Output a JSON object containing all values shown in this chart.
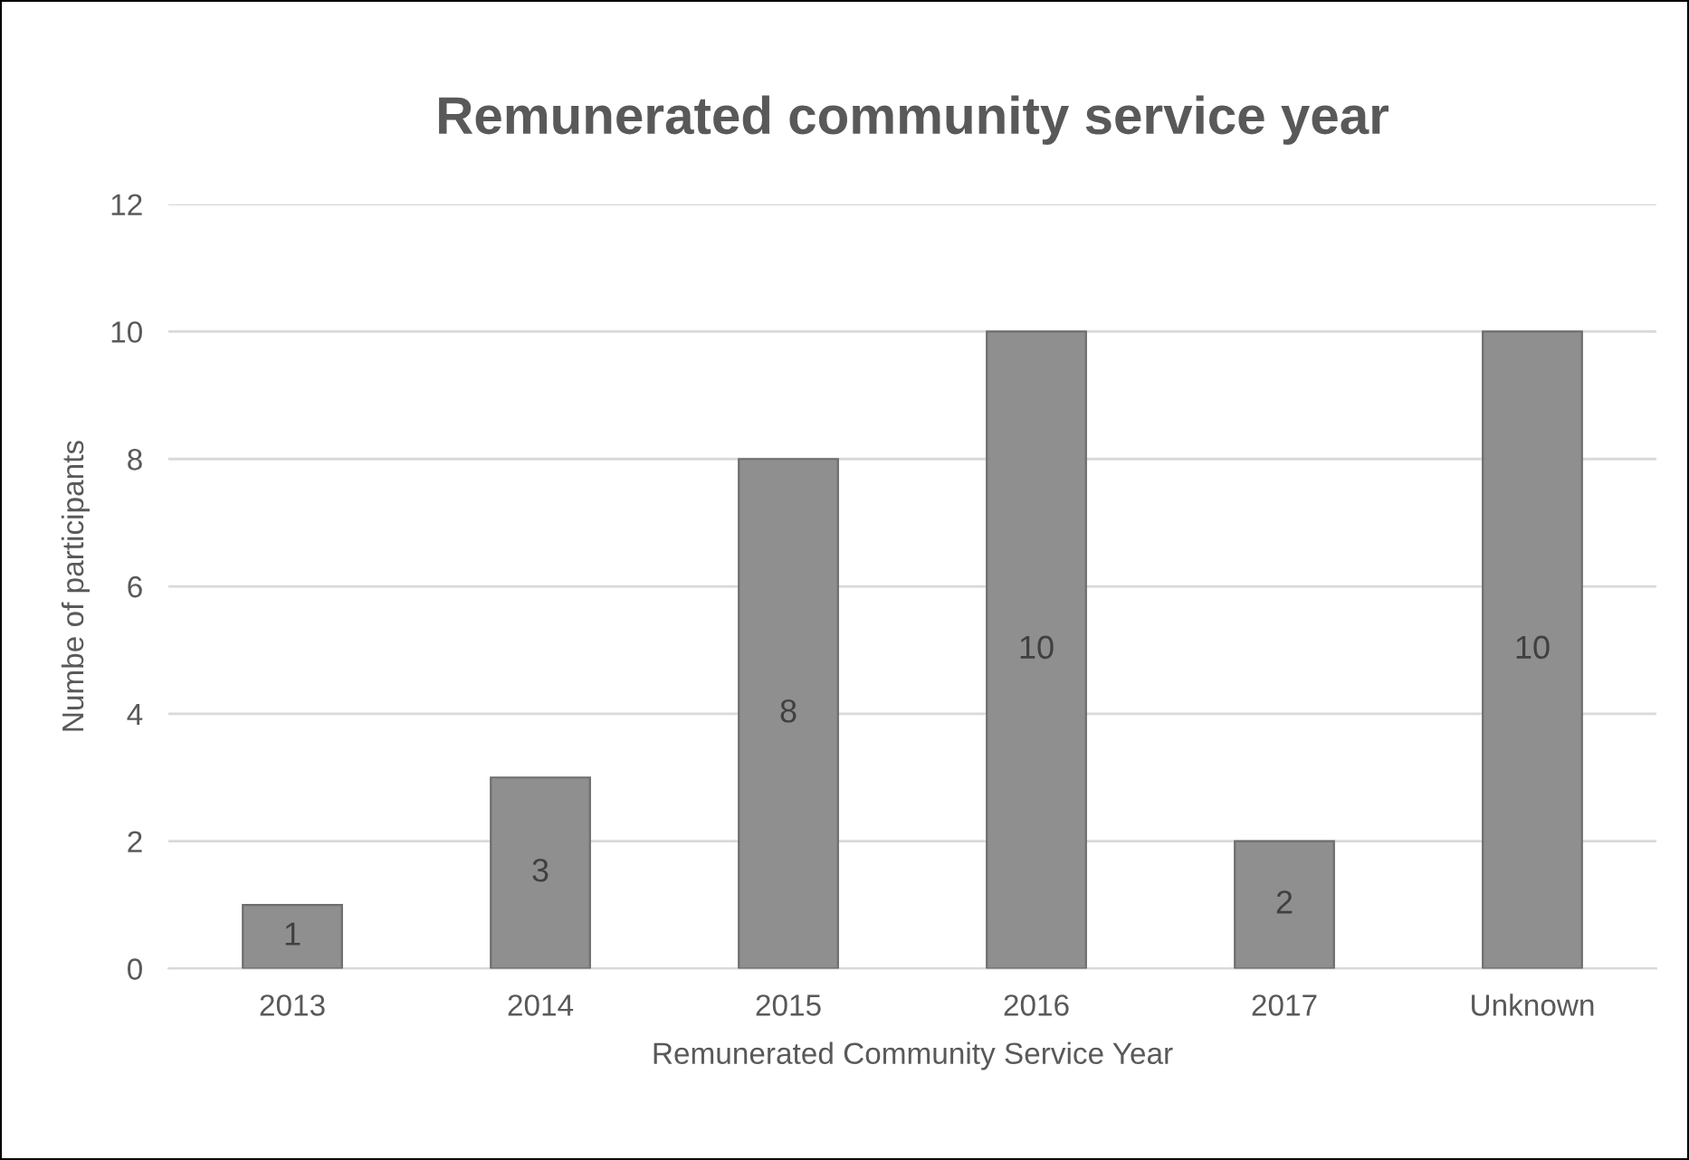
{
  "chart_data": {
    "type": "bar",
    "title": "Remunerated community service year",
    "xlabel": "Remunerated Community Service Year",
    "ylabel": "Numbe of participants",
    "categories": [
      "2013",
      "2014",
      "2015",
      "2016",
      "2017",
      "Unknown"
    ],
    "series": [
      {
        "color": "#8f8f8f",
        "values": [
          1,
          3,
          8,
          10,
          2,
          10
        ]
      }
    ],
    "ylim": [
      0,
      12
    ],
    "yticks": [
      0,
      2,
      4,
      6,
      8,
      10,
      12
    ],
    "grid": "y",
    "data_labels": true,
    "legend": false
  }
}
